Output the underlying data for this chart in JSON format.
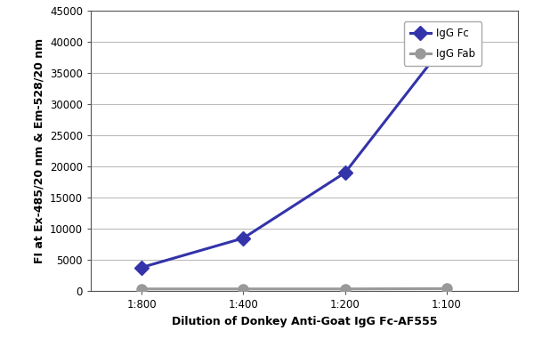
{
  "x_labels": [
    "1:800",
    "1:400",
    "1:200",
    "1:100"
  ],
  "x_positions": [
    0,
    1,
    2,
    3
  ],
  "igg_fc_values": [
    3800,
    8500,
    19000,
    40000
  ],
  "igg_fab_values": [
    350,
    350,
    350,
    400
  ],
  "igg_fc_color": "#3333AA",
  "igg_fab_color": "#999999",
  "igg_fc_label": "IgG Fc",
  "igg_fab_label": "IgG Fab",
  "ylabel": "FI at Ex-485/20 nm & Em-528/20 nm",
  "xlabel": "Dilution of Donkey Anti-Goat IgG Fc-AF555",
  "ylim": [
    0,
    45000
  ],
  "yticks": [
    0,
    5000,
    10000,
    15000,
    20000,
    25000,
    30000,
    35000,
    40000,
    45000
  ],
  "line_width": 2.2,
  "marker_size": 8,
  "background_color": "#ffffff",
  "grid_color": "#bbbbbb",
  "axis_color": "#555555",
  "label_fontsize": 9,
  "tick_fontsize": 8.5
}
